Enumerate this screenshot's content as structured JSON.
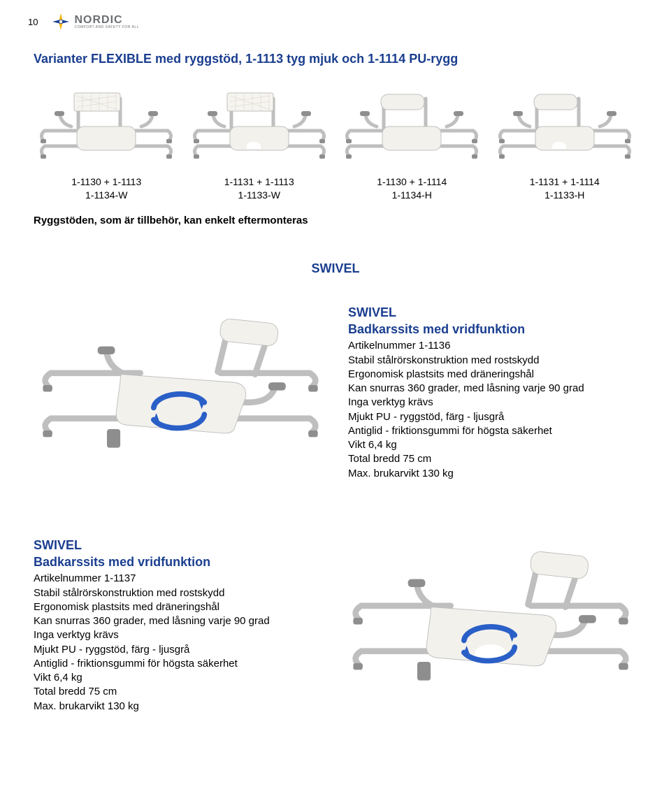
{
  "page_number": "10",
  "logo": {
    "name": "NORDIC",
    "tagline": "COMFORT AND SAFETY FOR ALL"
  },
  "colors": {
    "brand_blue": "#1a3e8f",
    "logo_yellow": "#f4b400",
    "logo_grey": "#6b6f73",
    "text_black": "#000000",
    "seat_fill": "#f3f1ec",
    "tube_stroke": "#bfbfbf",
    "armrest_grey": "#8e8e8e",
    "arrow_blue": "#2a5fc7"
  },
  "section_title": "Varianter FLEXIBLE med ryggstöd, 1-1113 tyg mjuk och 1-1114 PU-rygg",
  "variants": [
    {
      "line1": "1-1130 + 1-1113",
      "line2": "1-1134-W",
      "backrest": "mesh",
      "cutout": false
    },
    {
      "line1": "1-1131 + 1-1113",
      "line2": "1-1133-W",
      "backrest": "mesh",
      "cutout": true
    },
    {
      "line1": "1-1130 + 1-1114",
      "line2": "1-1134-H",
      "backrest": "pu",
      "cutout": false
    },
    {
      "line1": "1-1131 + 1-1114",
      "line2": "1-1133-H",
      "backrest": "pu",
      "cutout": true
    }
  ],
  "accessory_note": "Ryggstöden, som är tillbehör, kan enkelt eftermonteras",
  "swivel_heading": "SWIVEL",
  "product1": {
    "heading": "SWIVEL",
    "subheading": "Badkarssits med vridfunktion",
    "specs": [
      "Artikelnummer 1-1136",
      "Stabil stålrörskonstruktion med rostskydd",
      "Ergonomisk plastsits med dräneringshål",
      "Kan snurras 360 grader, med låsning varje 90 grad",
      "Inga verktyg krävs",
      "Mjukt PU - ryggstöd, färg - ljusgrå",
      "Antiglid - friktionsgummi för högsta säkerhet",
      "Vikt 6,4 kg",
      "Total bredd 75 cm",
      "Max. brukarvikt 130 kg"
    ],
    "cutout": false
  },
  "product2": {
    "heading": "SWIVEL",
    "subheading": "Badkarssits med vridfunktion",
    "specs": [
      "Artikelnummer 1-1137",
      "Stabil stålrörskonstruktion med rostskydd",
      "Ergonomisk plastsits med dräneringshål",
      "Kan snurras 360 grader, med låsning varje 90 grad",
      "Inga verktyg krävs",
      "Mjukt PU - ryggstöd, färg - ljusgrå",
      "Antiglid - friktionsgummi för högsta säkerhet",
      "Vikt 6,4 kg",
      "Total bredd 75 cm",
      "Max. brukarvikt 130 kg"
    ],
    "cutout": true
  }
}
